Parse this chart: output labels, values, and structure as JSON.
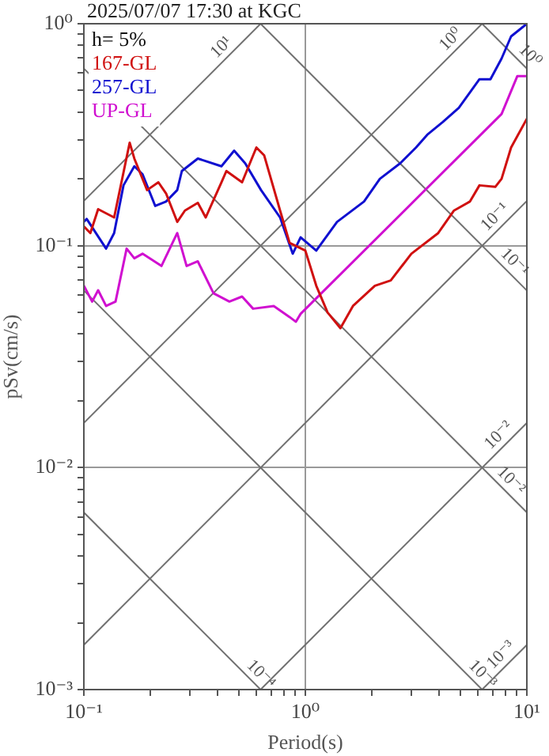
{
  "chart_data": {
    "type": "line",
    "title": "2025/07/07 17:30 at KGC",
    "xlabel": "Period(s)",
    "ylabel": "pSv(cm/s)",
    "legend_title": "h= 5%",
    "legend": "top left",
    "log": "xy",
    "grid": true,
    "marker": "none",
    "line_style": "solid",
    "xlim": [
      0.1,
      10
    ],
    "ylim": [
      0.001,
      1
    ],
    "xticks": [
      {
        "value": 0.1,
        "label": "10⁻¹"
      },
      {
        "value": 0.2,
        "label": null
      },
      {
        "value": 0.3,
        "label": null
      },
      {
        "value": 0.4,
        "label": null
      },
      {
        "value": 0.5,
        "label": null
      },
      {
        "value": 0.6,
        "label": null
      },
      {
        "value": 0.7,
        "label": null
      },
      {
        "value": 0.8,
        "label": null
      },
      {
        "value": 0.9,
        "label": null
      },
      {
        "value": 1,
        "label": "10⁰"
      },
      {
        "value": 2,
        "label": null
      },
      {
        "value": 3,
        "label": null
      },
      {
        "value": 4,
        "label": null
      },
      {
        "value": 5,
        "label": null
      },
      {
        "value": 6,
        "label": null
      },
      {
        "value": 7,
        "label": null
      },
      {
        "value": 8,
        "label": null
      },
      {
        "value": 9,
        "label": null
      },
      {
        "value": 10,
        "label": "10¹"
      }
    ],
    "yticks": [
      {
        "value": 0.001,
        "label": "10⁻³"
      },
      {
        "value": 0.002,
        "label": null
      },
      {
        "value": 0.003,
        "label": null
      },
      {
        "value": 0.004,
        "label": null
      },
      {
        "value": 0.005,
        "label": null
      },
      {
        "value": 0.006,
        "label": null
      },
      {
        "value": 0.007,
        "label": null
      },
      {
        "value": 0.008,
        "label": null
      },
      {
        "value": 0.009,
        "label": null
      },
      {
        "value": 0.01,
        "label": "10⁻²"
      },
      {
        "value": 0.02,
        "label": null
      },
      {
        "value": 0.03,
        "label": null
      },
      {
        "value": 0.04,
        "label": null
      },
      {
        "value": 0.05,
        "label": null
      },
      {
        "value": 0.06,
        "label": null
      },
      {
        "value": 0.07,
        "label": null
      },
      {
        "value": 0.08,
        "label": null
      },
      {
        "value": 0.09,
        "label": null
      },
      {
        "value": 0.1,
        "label": "10⁻¹"
      },
      {
        "value": 0.2,
        "label": null
      },
      {
        "value": 0.3,
        "label": null
      },
      {
        "value": 0.4,
        "label": null
      },
      {
        "value": 0.5,
        "label": null
      },
      {
        "value": 0.6,
        "label": null
      },
      {
        "value": 0.7,
        "label": null
      },
      {
        "value": 0.8,
        "label": null
      },
      {
        "value": 0.9,
        "label": null
      },
      {
        "value": 1,
        "label": "10⁰"
      }
    ],
    "series": [
      {
        "name": "167-GL",
        "color": "#d01010",
        "x": [
          0.1,
          0.107,
          0.116,
          0.137,
          0.161,
          0.169,
          0.193,
          0.217,
          0.235,
          0.264,
          0.286,
          0.327,
          0.355,
          0.418,
          0.44,
          0.518,
          0.601,
          0.652,
          0.769,
          0.849,
          1.0,
          1.12,
          1.26,
          1.44,
          1.64,
          2.06,
          2.43,
          3.01,
          3.98,
          4.69,
          5.53,
          6.11,
          7.2,
          7.69,
          8.49,
          10
        ],
        "values": [
          0.122,
          0.114,
          0.146,
          0.134,
          0.291,
          0.247,
          0.178,
          0.193,
          0.172,
          0.128,
          0.144,
          0.156,
          0.134,
          0.193,
          0.217,
          0.193,
          0.277,
          0.255,
          0.144,
          0.103,
          0.095,
          0.066,
          0.05,
          0.0425,
          0.0535,
          0.066,
          0.0697,
          0.092,
          0.114,
          0.144,
          0.158,
          0.187,
          0.184,
          0.2,
          0.277,
          0.373
        ]
      },
      {
        "name": "257-GL",
        "color": "#1010d0",
        "x": [
          0.1,
          0.103,
          0.126,
          0.137,
          0.151,
          0.169,
          0.184,
          0.21,
          0.235,
          0.264,
          0.277,
          0.327,
          0.418,
          0.477,
          0.535,
          0.631,
          0.769,
          0.877,
          0.952,
          1.12,
          1.39,
          1.84,
          2.17,
          2.68,
          3.16,
          3.55,
          4.18,
          4.93,
          6.11,
          6.85,
          7.69,
          8.49,
          10
        ],
        "values": [
          0.128,
          0.132,
          0.097,
          0.114,
          0.187,
          0.228,
          0.21,
          0.151,
          0.158,
          0.178,
          0.217,
          0.247,
          0.228,
          0.268,
          0.235,
          0.178,
          0.134,
          0.092,
          0.109,
          0.095,
          0.128,
          0.158,
          0.2,
          0.235,
          0.277,
          0.316,
          0.361,
          0.418,
          0.562,
          0.562,
          0.697,
          0.877,
          1.0
        ]
      },
      {
        "name": "UP-GL",
        "color": "#d010d0",
        "x": [
          0.1,
          0.109,
          0.116,
          0.126,
          0.139,
          0.156,
          0.169,
          0.184,
          0.224,
          0.264,
          0.291,
          0.327,
          0.385,
          0.454,
          0.518,
          0.581,
          0.72,
          0.849,
          0.906,
          0.952,
          7.69,
          9.06,
          10
        ],
        "values": [
          0.066,
          0.056,
          0.063,
          0.0535,
          0.056,
          0.097,
          0.0877,
          0.092,
          0.081,
          0.114,
          0.081,
          0.085,
          0.061,
          0.056,
          0.059,
          0.052,
          0.0535,
          0.0477,
          0.0454,
          0.0493,
          0.392,
          0.581,
          0.581
        ]
      },
      {
        "color": "#707070",
        "x": [
          0.1,
          0.628
        ],
        "values": [
          0.159,
          1
        ]
      },
      {
        "color": "#707070",
        "x": [
          0.1,
          6.28
        ],
        "values": [
          0.0159,
          1
        ]
      },
      {
        "color": "#707070",
        "x": [
          0.1,
          10
        ],
        "values": [
          0.00159,
          0.159
        ]
      },
      {
        "color": "#707070",
        "x": [
          0.628,
          10
        ],
        "values": [
          0.001,
          0.0159
        ]
      },
      {
        "color": "#707070",
        "x": [
          6.28,
          10
        ],
        "values": [
          0.001,
          0.00159
        ]
      },
      {
        "color": "#707070",
        "x": [
          6.28,
          10
        ],
        "values": [
          1,
          0.628
        ]
      },
      {
        "color": "#707070",
        "x": [
          0.628,
          10
        ],
        "values": [
          1,
          0.0628
        ]
      },
      {
        "color": "#707070",
        "x": [
          0.1,
          10
        ],
        "values": [
          0.628,
          0.00628
        ]
      },
      {
        "color": "#707070",
        "x": [
          0.1,
          6.28
        ],
        "values": [
          0.0628,
          0.001
        ]
      },
      {
        "color": "#707070",
        "x": [
          0.1,
          0.628
        ],
        "values": [
          0.00628,
          0.001
        ]
      }
    ],
    "annotations": [
      {
        "text": "10¹",
        "x": 0.454,
        "y": 0.722
      },
      {
        "text": "10⁰",
        "x": 4.93,
        "y": 0.784
      },
      {
        "text": "10⁰",
        "x": 9.5,
        "y": 0.661
      },
      {
        "text": "10⁻¹",
        "x": 7.8,
        "y": 0.124
      },
      {
        "text": "10⁻¹",
        "x": 8.1,
        "y": 0.0775
      },
      {
        "text": "10⁻²",
        "x": 8.1,
        "y": 0.0129
      },
      {
        "text": "10⁻²",
        "x": 7.8,
        "y": 0.00805
      },
      {
        "text": "10⁻⁴",
        "x": 0.58,
        "y": 0.00108
      },
      {
        "text": "10⁻³",
        "x": 5.8,
        "y": 0.00108
      },
      {
        "text": "10⁻³",
        "x": 8.3,
        "y": 0.00132
      }
    ]
  }
}
